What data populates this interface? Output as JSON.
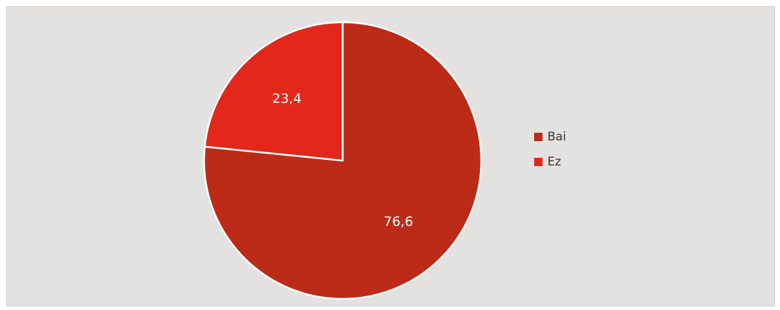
{
  "chart_data": {
    "type": "pie",
    "title": "",
    "categories": [
      "Bai",
      "Ez"
    ],
    "values": [
      76.6,
      23.4
    ],
    "value_labels": [
      "76,6",
      "23,4"
    ],
    "colors": [
      "#bc2b17",
      "#e3281b"
    ],
    "start_angle": "12 o'clock",
    "direction": "clockwise",
    "legend": {
      "placement": "right",
      "entries": [
        "Bai",
        "Ez"
      ]
    }
  }
}
